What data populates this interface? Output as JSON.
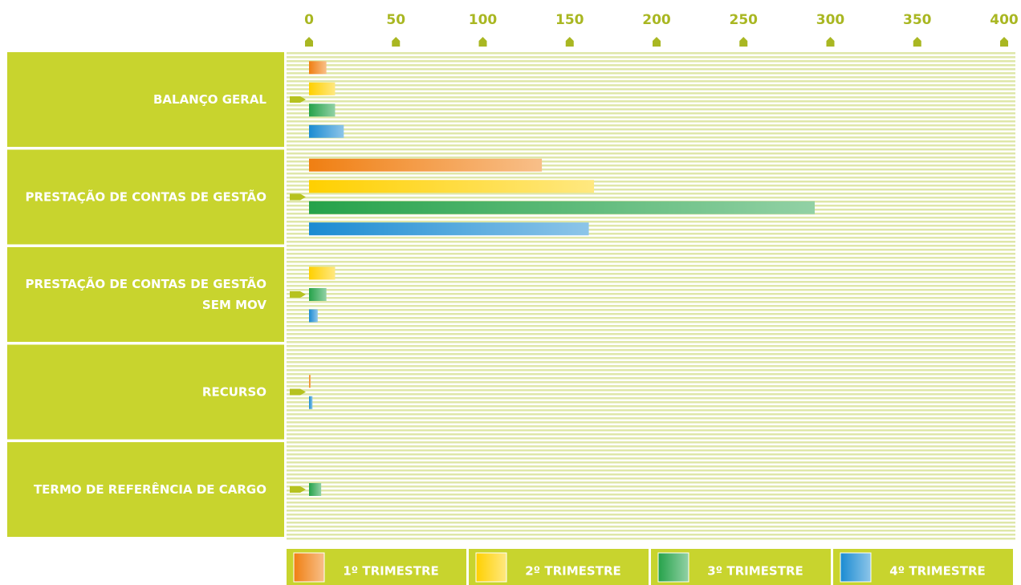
{
  "chart_data": {
    "type": "bar",
    "orientation": "horizontal",
    "categories": [
      "BALANÇO GERAL",
      "PRESTAÇÃO DE CONTAS DE GESTÃO",
      "PRESTAÇÃO DE CONTAS DE GESTÃO SEM MOV",
      "RECURSO",
      "TERMO DE REFERÊNCIA DE CARGO"
    ],
    "series": [
      {
        "name": "1º TRIMESTRE",
        "color": "#f07f12",
        "values": [
          10,
          134,
          null,
          1,
          null
        ]
      },
      {
        "name": "2º TRIMESTRE",
        "color": "#ffd000",
        "values": [
          15,
          164,
          15,
          null,
          null
        ]
      },
      {
        "name": "3º TRIMESTRE",
        "color": "#25a24a",
        "values": [
          15,
          291,
          10,
          null,
          7
        ]
      },
      {
        "name": "4º TRIMESTRE",
        "color": "#1a8bd2",
        "values": [
          20,
          161,
          5,
          2,
          null
        ]
      }
    ],
    "xlim": [
      0,
      400
    ],
    "xticks": [
      0,
      50,
      100,
      150,
      200,
      250,
      300,
      350,
      400
    ],
    "legend": "bottom"
  }
}
